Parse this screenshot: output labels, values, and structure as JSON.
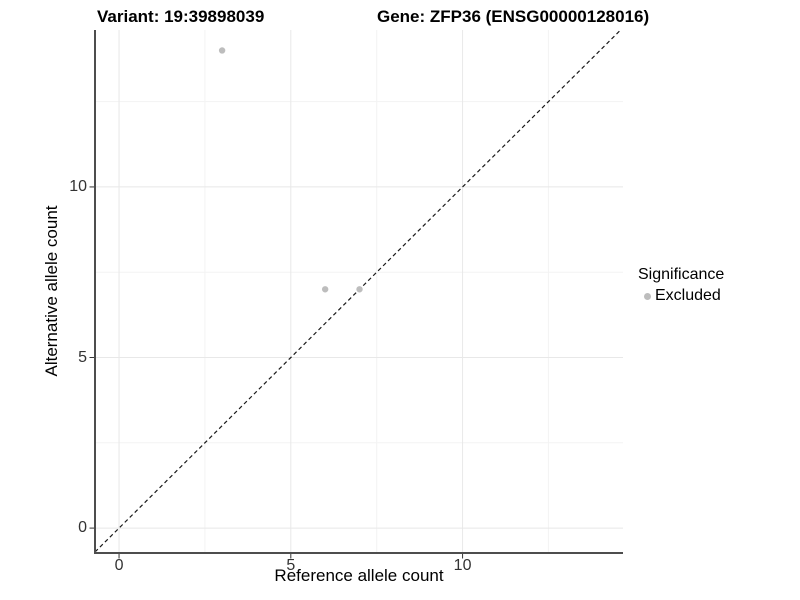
{
  "chart_data": {
    "type": "scatter",
    "title_left": "Variant: 19:39898039",
    "title_right": "Gene: ZFP36 (ENSG00000128016)",
    "xlabel": "Reference allele count",
    "ylabel": "Alternative allele count",
    "xlim": [
      -0.7,
      14.67
    ],
    "ylim": [
      -0.73,
      14.6
    ],
    "x_ticks": [
      0,
      5,
      10
    ],
    "y_ticks": [
      0,
      5,
      10
    ],
    "x_minor_ticks": [
      2.5,
      7.5,
      12.5
    ],
    "y_minor_ticks": [
      2.5,
      7.5,
      12.5
    ],
    "grid": "major-and-minor",
    "series": [
      {
        "name": "Excluded",
        "color": "#bdbdbd",
        "points": [
          [
            3,
            14
          ],
          [
            6,
            7
          ],
          [
            7,
            7
          ]
        ]
      }
    ],
    "reference_line": {
      "type": "identity",
      "slope": 1,
      "intercept": 0,
      "style": "dashed",
      "color": "#1a1a1a"
    },
    "legend": {
      "title": "Significance",
      "position": "right",
      "items": [
        {
          "label": "Excluded",
          "color": "#bdbdbd"
        }
      ]
    },
    "colors": {
      "background": "#ffffff",
      "grid_major": "#e8e8e8",
      "grid_minor": "#f3f3f3",
      "axis_line": "#4d4d4d",
      "tick_mark": "#333333",
      "tick_text": "#333333",
      "point": "#bdbdbd"
    }
  }
}
